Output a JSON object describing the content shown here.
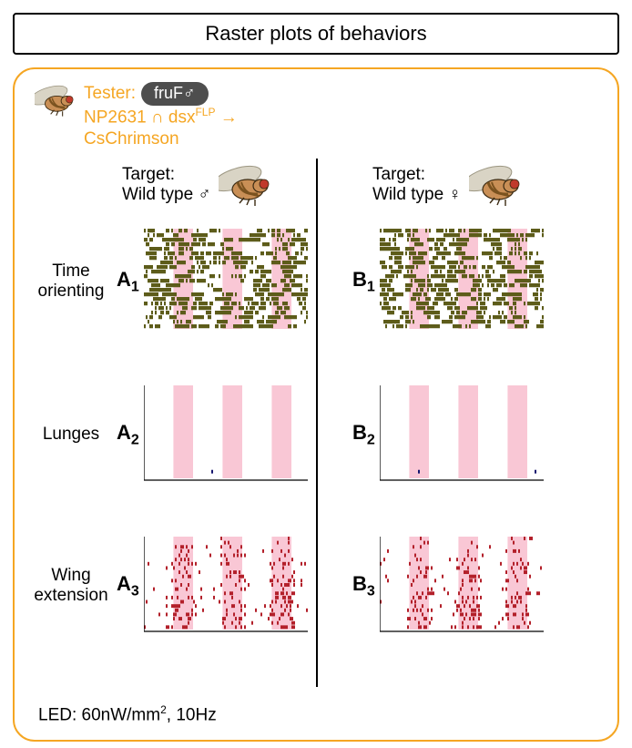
{
  "title": "Raster plots of behaviors",
  "tester": {
    "label": "Tester:",
    "badge_text": "fruF♂",
    "genotype_line": "NP2631 ∩ dsx",
    "genotype_sup": "FLP",
    "arrow": " →",
    "effector": "CsChrimson",
    "text_color": "#f5a623",
    "badge_bg": "#4e4e4e",
    "badge_fg": "#ffffff"
  },
  "panel_border_color": "#f5a623",
  "columns": {
    "A": {
      "target_line1": "Target:",
      "target_line2": "Wild type ♂"
    },
    "B": {
      "target_line1": "Target:",
      "target_line2": "Wild type ♀"
    }
  },
  "rows": [
    {
      "id": "1",
      "label_line1": "Time",
      "label_line2": "orienting",
      "tick_color": "#5d5c1a",
      "density": 0.45,
      "bg_stimulus": true
    },
    {
      "id": "2",
      "label_line1": "Lunges",
      "label_line2": "",
      "tick_color": "#14146e",
      "density": 0.005,
      "bg_stimulus": true
    },
    {
      "id": "3",
      "label_line1": "Wing",
      "label_line2": "extension",
      "tick_color": "#b3202a",
      "density": 0.12,
      "bg_stimulus": true
    }
  ],
  "stimulus": {
    "band_color": "#f9c7d5",
    "band_opacity": 1.0,
    "bands_norm": [
      [
        0.18,
        0.3
      ],
      [
        0.48,
        0.6
      ],
      [
        0.78,
        0.9
      ]
    ]
  },
  "axes": {
    "stroke": "#000000",
    "stroke_width": 1.3
  },
  "raster": {
    "rows_count": 22,
    "tick_w": 2
  },
  "led_note_prefix": "LED: 60nW/mm",
  "led_note_sup": "2",
  "led_note_suffix": ", 10Hz",
  "fly": {
    "body": "#c98f56",
    "stripe": "#7a521f",
    "eye": "#c0392b",
    "wing": "#d9d4c5",
    "wing_stroke": "#9b9580",
    "outline": "#3b2a12"
  },
  "panel_labels": {
    "A": [
      "A",
      "A",
      "A"
    ],
    "B": [
      "B",
      "B",
      "B"
    ]
  }
}
